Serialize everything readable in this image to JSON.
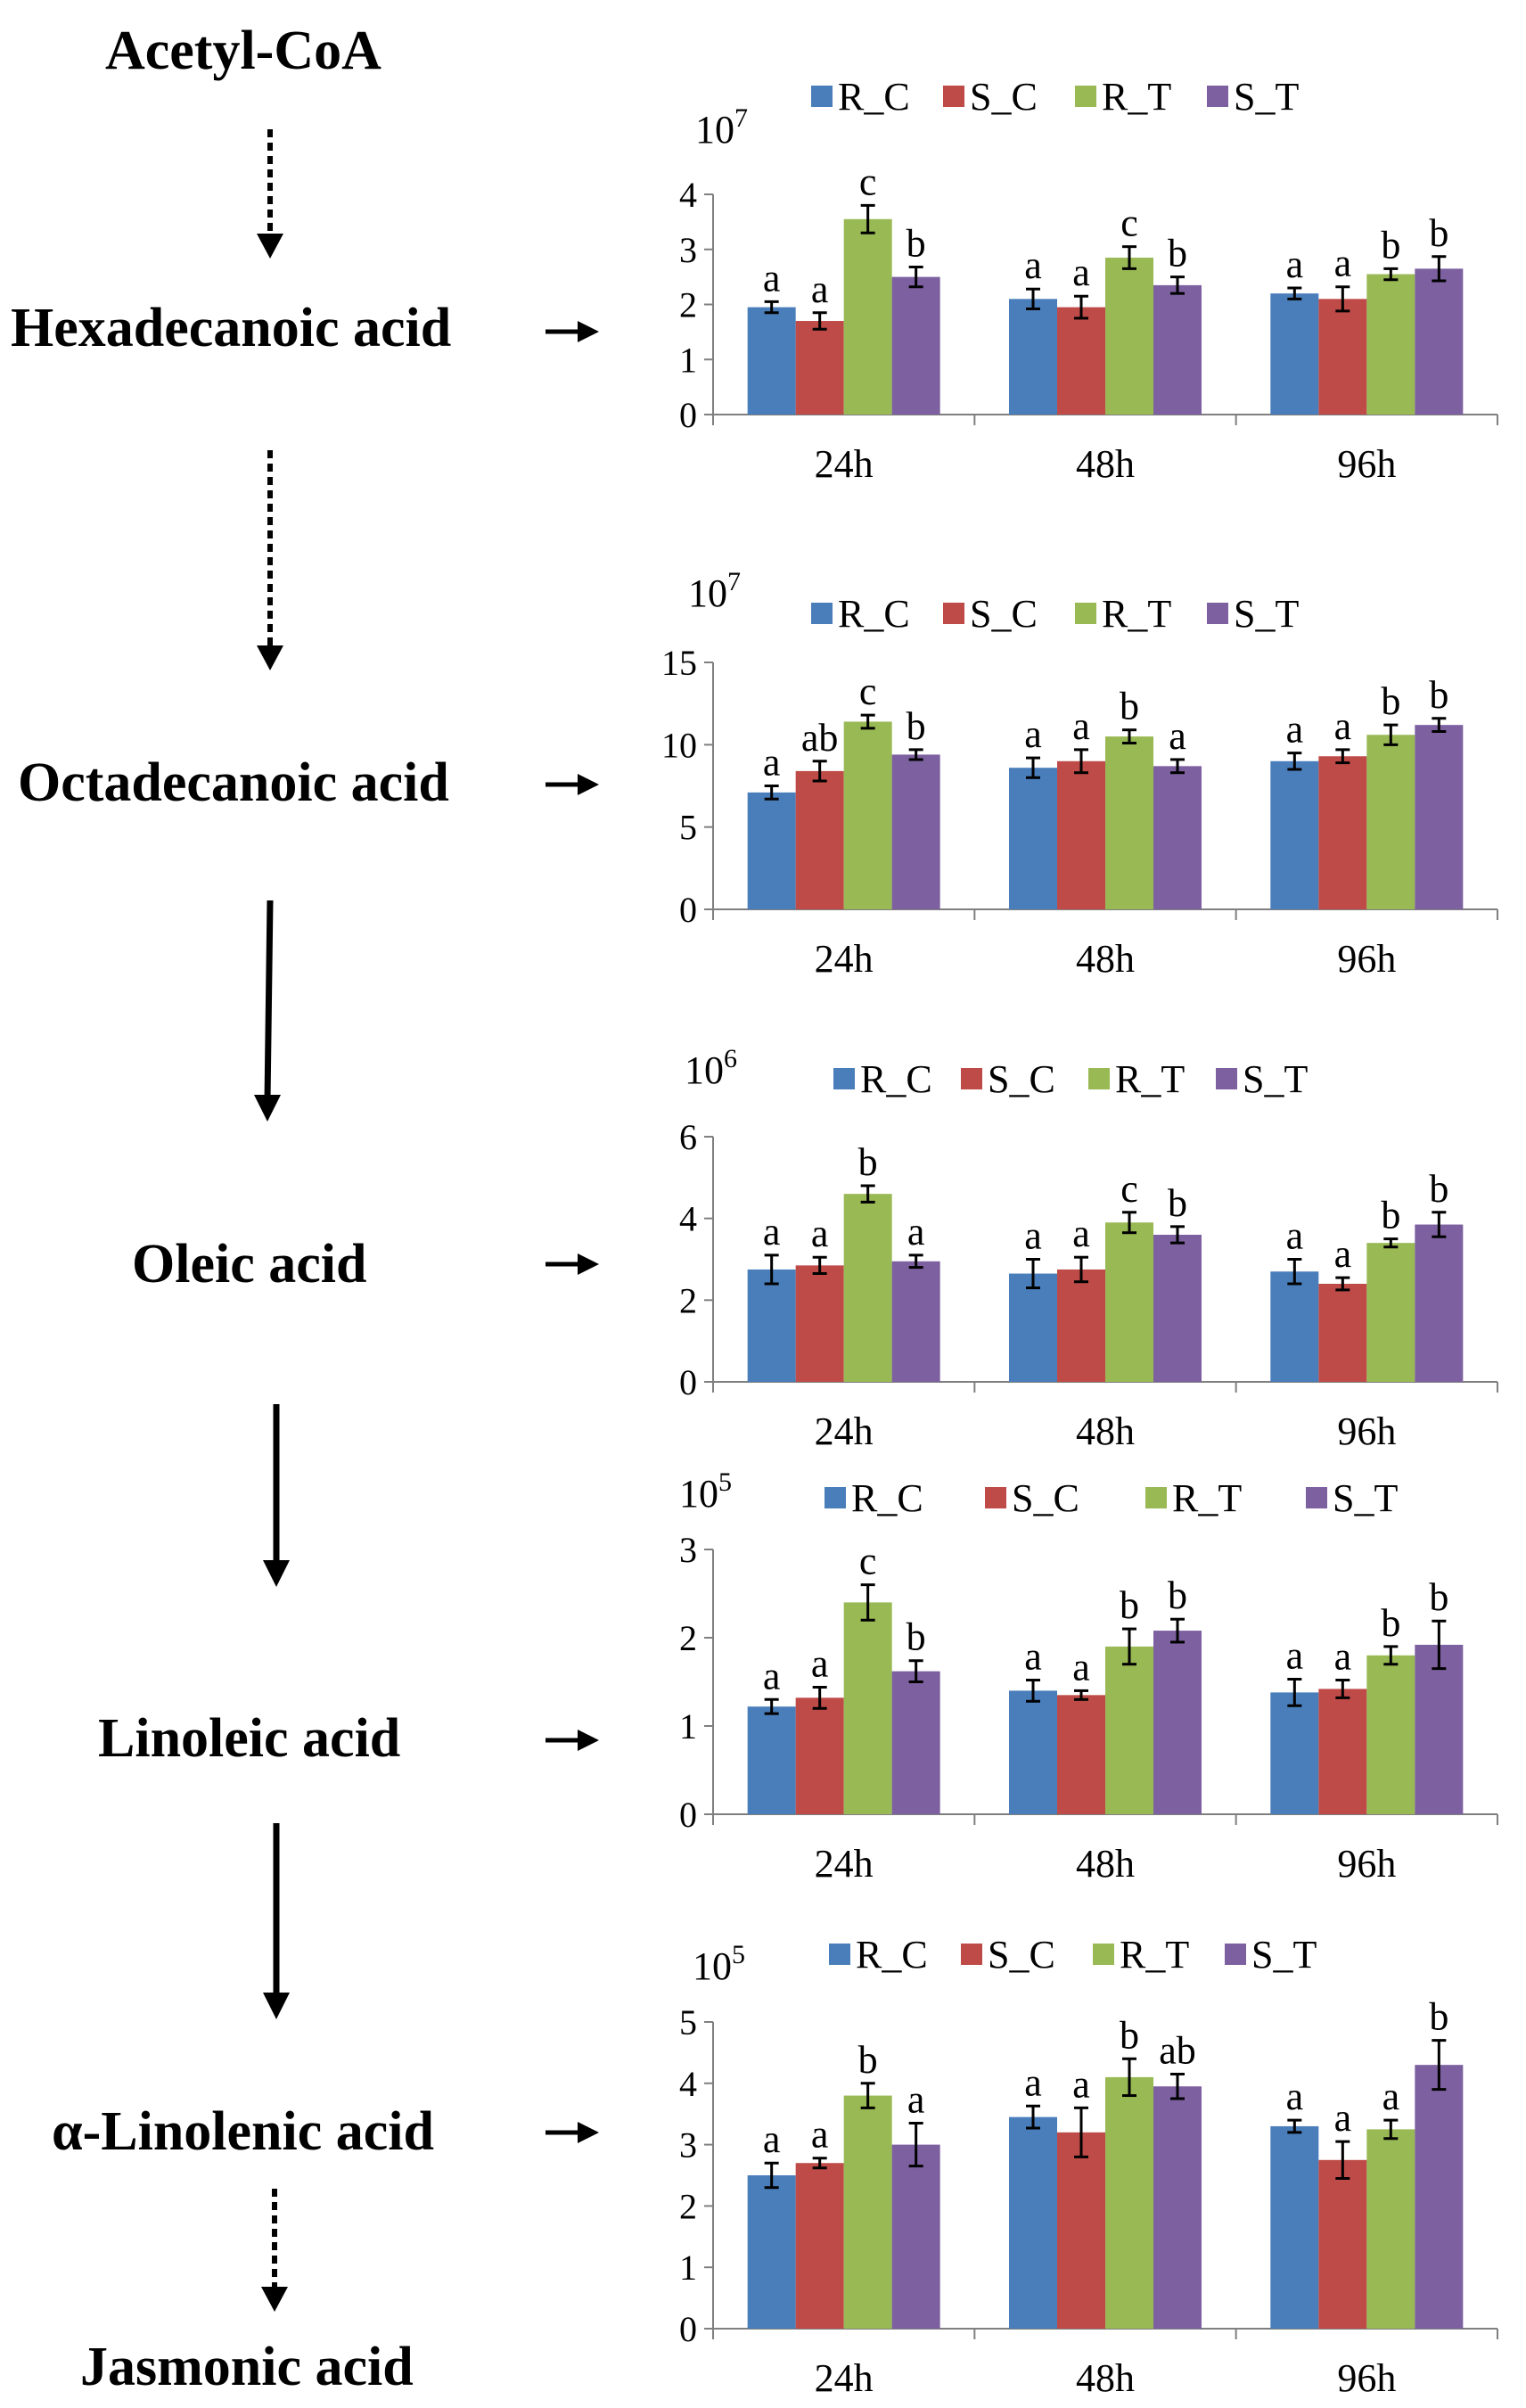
{
  "pathway": [
    {
      "compound": "Acetyl-CoA"
    },
    {
      "compound": "Hexadecanoic acid"
    },
    {
      "compound": "Octadecanoic acid"
    },
    {
      "compound": "Oleic acid"
    },
    {
      "compound": "Linoleic acid"
    },
    {
      "compound": "α-Linolenic acid"
    },
    {
      "compound": "Jasmonic acid"
    }
  ],
  "colors": {
    "R_C": "#4a7ebb",
    "S_C": "#be4b48",
    "R_T": "#98b954",
    "S_T": "#7d60a0"
  },
  "chart_data": [
    {
      "type": "bar",
      "compound": "Hexadecanoic acid",
      "scale_label": "10",
      "scale_exp": "7",
      "categories": [
        "24h",
        "48h",
        "96h"
      ],
      "ylim": [
        0,
        4
      ],
      "yticks": [
        "0",
        "1",
        "2",
        "3",
        "4"
      ],
      "series": [
        {
          "name": "R_C",
          "values": [
            1.95,
            2.1,
            2.2
          ],
          "errors": [
            0.1,
            0.18,
            0.1
          ],
          "letters": [
            "a",
            "a",
            "a"
          ]
        },
        {
          "name": "S_C",
          "values": [
            1.7,
            1.95,
            2.1
          ],
          "errors": [
            0.15,
            0.2,
            0.22
          ],
          "letters": [
            "a",
            "a",
            "a"
          ]
        },
        {
          "name": "R_T",
          "values": [
            3.55,
            2.85,
            2.55
          ],
          "errors": [
            0.25,
            0.2,
            0.1
          ],
          "letters": [
            "c",
            "c",
            "b"
          ]
        },
        {
          "name": "S_T",
          "values": [
            2.5,
            2.35,
            2.65
          ],
          "errors": [
            0.18,
            0.15,
            0.22
          ],
          "letters": [
            "b",
            "b",
            "b"
          ]
        }
      ]
    },
    {
      "type": "bar",
      "compound": "Octadecanoic acid",
      "scale_label": "10",
      "scale_exp": "7",
      "categories": [
        "24h",
        "48h",
        "96h"
      ],
      "ylim": [
        0,
        15
      ],
      "yticks": [
        "0",
        "5",
        "10",
        "15"
      ],
      "series": [
        {
          "name": "R_C",
          "values": [
            7.1,
            8.6,
            9.0
          ],
          "errors": [
            0.4,
            0.6,
            0.5
          ],
          "letters": [
            "a",
            "a",
            "a"
          ]
        },
        {
          "name": "S_C",
          "values": [
            8.4,
            9.0,
            9.3
          ],
          "errors": [
            0.6,
            0.7,
            0.4
          ],
          "letters": [
            "ab",
            "a",
            "a"
          ]
        },
        {
          "name": "R_T",
          "values": [
            11.4,
            10.5,
            10.6
          ],
          "errors": [
            0.4,
            0.4,
            0.6
          ],
          "letters": [
            "c",
            "b",
            "b"
          ]
        },
        {
          "name": "S_T",
          "values": [
            9.4,
            8.7,
            11.2
          ],
          "errors": [
            0.3,
            0.4,
            0.4
          ],
          "letters": [
            "b",
            "a",
            "b"
          ]
        }
      ]
    },
    {
      "type": "bar",
      "compound": "Oleic acid",
      "scale_label": "10",
      "scale_exp": "6",
      "categories": [
        "24h",
        "48h",
        "96h"
      ],
      "ylim": [
        0,
        6
      ],
      "yticks": [
        "0",
        "2",
        "4",
        "6"
      ],
      "series": [
        {
          "name": "R_C",
          "values": [
            2.75,
            2.65,
            2.7
          ],
          "errors": [
            0.35,
            0.35,
            0.3
          ],
          "letters": [
            "a",
            "a",
            "a"
          ]
        },
        {
          "name": "S_C",
          "values": [
            2.85,
            2.75,
            2.4
          ],
          "errors": [
            0.2,
            0.3,
            0.15
          ],
          "letters": [
            "a",
            "a",
            "a"
          ]
        },
        {
          "name": "R_T",
          "values": [
            4.6,
            3.9,
            3.4
          ],
          "errors": [
            0.2,
            0.25,
            0.1
          ],
          "letters": [
            "b",
            "c",
            "b"
          ]
        },
        {
          "name": "S_T",
          "values": [
            2.95,
            3.6,
            3.85
          ],
          "errors": [
            0.15,
            0.2,
            0.3
          ],
          "letters": [
            "a",
            "b",
            "b"
          ]
        }
      ]
    },
    {
      "type": "bar",
      "compound": "Linoleic acid",
      "scale_label": "10",
      "scale_exp": "5",
      "categories": [
        "24h",
        "48h",
        "96h"
      ],
      "ylim": [
        0,
        3
      ],
      "yticks": [
        "0",
        "1",
        "2",
        "3"
      ],
      "series": [
        {
          "name": "R_C",
          "values": [
            1.22,
            1.4,
            1.38
          ],
          "errors": [
            0.08,
            0.12,
            0.15
          ],
          "letters": [
            "a",
            "a",
            "a"
          ]
        },
        {
          "name": "S_C",
          "values": [
            1.32,
            1.35,
            1.42
          ],
          "errors": [
            0.12,
            0.05,
            0.1
          ],
          "letters": [
            "a",
            "a",
            "a"
          ]
        },
        {
          "name": "R_T",
          "values": [
            2.4,
            1.9,
            1.8
          ],
          "errors": [
            0.2,
            0.2,
            0.1
          ],
          "letters": [
            "c",
            "b",
            "b"
          ]
        },
        {
          "name": "S_T",
          "values": [
            1.62,
            2.08,
            1.92
          ],
          "errors": [
            0.12,
            0.13,
            0.27
          ],
          "letters": [
            "b",
            "b",
            "b"
          ]
        }
      ]
    },
    {
      "type": "bar",
      "compound": "α-Linolenic acid",
      "scale_label": "10",
      "scale_exp": "5",
      "categories": [
        "24h",
        "48h",
        "96h"
      ],
      "ylim": [
        0,
        5
      ],
      "yticks": [
        "0",
        "1",
        "2",
        "3",
        "4",
        "5"
      ],
      "series": [
        {
          "name": "R_C",
          "values": [
            2.5,
            3.45,
            3.3
          ],
          "errors": [
            0.2,
            0.18,
            0.1
          ],
          "letters": [
            "a",
            "a",
            "a"
          ]
        },
        {
          "name": "S_C",
          "values": [
            2.7,
            3.2,
            2.75
          ],
          "errors": [
            0.08,
            0.4,
            0.3
          ],
          "letters": [
            "a",
            "a",
            "a"
          ]
        },
        {
          "name": "R_T",
          "values": [
            3.8,
            4.1,
            3.25
          ],
          "errors": [
            0.2,
            0.3,
            0.15
          ],
          "letters": [
            "b",
            "b",
            "a"
          ]
        },
        {
          "name": "S_T",
          "values": [
            3.0,
            3.95,
            4.3
          ],
          "errors": [
            0.35,
            0.2,
            0.4
          ],
          "letters": [
            "a",
            "ab",
            "b"
          ]
        }
      ]
    }
  ]
}
